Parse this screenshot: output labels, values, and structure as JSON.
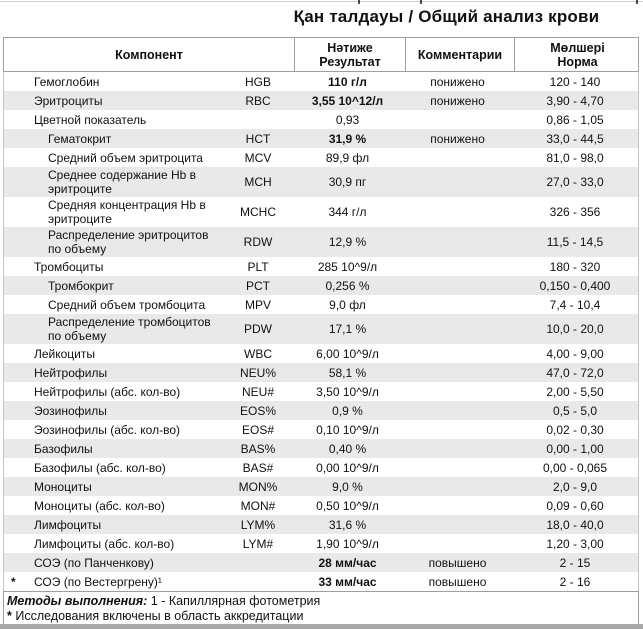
{
  "title": "Қан  талдауы / Общий анализ крови",
  "table": {
    "headers": {
      "component": "Компонент",
      "result": "Нәтиже\nРезультат",
      "comment": "Комментарии",
      "norm": "Мөлшері\nНорма"
    },
    "rows": [
      {
        "name": "Гемоглобин",
        "code": "HGB",
        "result": "110 г/л",
        "comment": "понижено",
        "norm": "120 - 140",
        "bold": true,
        "shaded": false,
        "indent": 1,
        "asterisk": false
      },
      {
        "name": "Эритроциты",
        "code": "RBC",
        "result": "3,55 10^12/л",
        "comment": "понижено",
        "norm": "3,90 - 4,70",
        "bold": true,
        "shaded": true,
        "indent": 1,
        "asterisk": false
      },
      {
        "name": "Цветной показатель",
        "code": "",
        "result": "0,93",
        "comment": "",
        "norm": "0,86 - 1,05",
        "bold": false,
        "shaded": false,
        "indent": 1,
        "asterisk": false
      },
      {
        "name": "Гематокрит",
        "code": "HCT",
        "result": "31,9 %",
        "comment": "понижено",
        "norm": "33,0 - 44,5",
        "bold": true,
        "shaded": true,
        "indent": 2,
        "asterisk": false
      },
      {
        "name": "Средний объем эритроцита",
        "code": "MCV",
        "result": "89,9 фл",
        "comment": "",
        "norm": "81,0 - 98,0",
        "bold": false,
        "shaded": false,
        "indent": 2,
        "asterisk": false
      },
      {
        "name": "Среднее содержание Hb в эритроците",
        "code": "MCH",
        "result": "30,9 пг",
        "comment": "",
        "norm": "27,0 - 33,0",
        "bold": false,
        "shaded": true,
        "indent": 2,
        "asterisk": false
      },
      {
        "name": "Средняя концентрация Hb в эритроците",
        "code": "MCHC",
        "result": "344 г/л",
        "comment": "",
        "norm": "326 - 356",
        "bold": false,
        "shaded": false,
        "indent": 2,
        "asterisk": false
      },
      {
        "name": "Распределение эритроцитов по объему",
        "code": "RDW",
        "result": "12,9 %",
        "comment": "",
        "norm": "11,5 - 14,5",
        "bold": false,
        "shaded": true,
        "indent": 2,
        "asterisk": false
      },
      {
        "name": "Тромбоциты",
        "code": "PLT",
        "result": "285 10^9/л",
        "comment": "",
        "norm": "180 - 320",
        "bold": false,
        "shaded": false,
        "indent": 1,
        "asterisk": false
      },
      {
        "name": "Тромбокрит",
        "code": "PCT",
        "result": "0,256 %",
        "comment": "",
        "norm": "0,150 - 0,400",
        "bold": false,
        "shaded": true,
        "indent": 2,
        "asterisk": false
      },
      {
        "name": "Средний объем тромбоцита",
        "code": "MPV",
        "result": "9,0 фл",
        "comment": "",
        "norm": "7,4 - 10,4",
        "bold": false,
        "shaded": false,
        "indent": 2,
        "asterisk": false
      },
      {
        "name": "Распределение тромбоцитов по объему",
        "code": "PDW",
        "result": "17,1 %",
        "comment": "",
        "norm": "10,0 - 20,0",
        "bold": false,
        "shaded": true,
        "indent": 2,
        "asterisk": false
      },
      {
        "name": "Лейкоциты",
        "code": "WBC",
        "result": "6,00 10^9/л",
        "comment": "",
        "norm": "4,00 - 9,00",
        "bold": false,
        "shaded": false,
        "indent": 1,
        "asterisk": false
      },
      {
        "name": "Нейтрофилы",
        "code": "NEU%",
        "result": "58,1 %",
        "comment": "",
        "norm": "47,0 - 72,0",
        "bold": false,
        "shaded": true,
        "indent": 1,
        "asterisk": false
      },
      {
        "name": "Нейтрофилы (абс. кол-во)",
        "code": "NEU#",
        "result": "3,50 10^9/л",
        "comment": "",
        "norm": "2,00 - 5,50",
        "bold": false,
        "shaded": false,
        "indent": 1,
        "asterisk": false
      },
      {
        "name": "Эозинофилы",
        "code": "EOS%",
        "result": "0,9 %",
        "comment": "",
        "norm": "0,5 - 5,0",
        "bold": false,
        "shaded": true,
        "indent": 1,
        "asterisk": false
      },
      {
        "name": "Эозинофилы (абс. кол-во)",
        "code": "EOS#",
        "result": "0,10 10^9/л",
        "comment": "",
        "norm": "0,02 - 0,30",
        "bold": false,
        "shaded": false,
        "indent": 1,
        "asterisk": false
      },
      {
        "name": "Базофилы",
        "code": "BAS%",
        "result": "0,40 %",
        "comment": "",
        "norm": "0,00 - 1,00",
        "bold": false,
        "shaded": true,
        "indent": 1,
        "asterisk": false
      },
      {
        "name": "Базофилы (абс. кол-во)",
        "code": "BAS#",
        "result": "0,00 10^9/л",
        "comment": "",
        "norm": "0,00 - 0,065",
        "bold": false,
        "shaded": false,
        "indent": 1,
        "asterisk": false
      },
      {
        "name": "Моноциты",
        "code": "MON%",
        "result": "9,0 %",
        "comment": "",
        "norm": "2,0 - 9,0",
        "bold": false,
        "shaded": true,
        "indent": 1,
        "asterisk": false
      },
      {
        "name": "Моноциты (абс. кол-во)",
        "code": "MON#",
        "result": "0,50 10^9/л",
        "comment": "",
        "norm": "0,09 - 0,60",
        "bold": false,
        "shaded": false,
        "indent": 1,
        "asterisk": false
      },
      {
        "name": "Лимфоциты",
        "code": "LYM%",
        "result": "31,6 %",
        "comment": "",
        "norm": "18,0 - 40,0",
        "bold": false,
        "shaded": true,
        "indent": 1,
        "asterisk": false
      },
      {
        "name": "Лимфоциты (абс. кол-во)",
        "code": "LYM#",
        "result": "1,90 10^9/л",
        "comment": "",
        "norm": "1,20 - 3,00",
        "bold": false,
        "shaded": false,
        "indent": 1,
        "asterisk": false
      },
      {
        "name": "СОЭ (по Панченкову)",
        "code": "",
        "result": "28 мм/час",
        "comment": "повышено",
        "norm": "2 - 15",
        "bold": true,
        "shaded": true,
        "indent": 1,
        "asterisk": false
      },
      {
        "name": "СОЭ (по Вестергрену)¹",
        "code": "",
        "result": "33 мм/час",
        "comment": "повышено",
        "norm": "2 - 16",
        "bold": true,
        "shaded": false,
        "indent": 1,
        "asterisk": true
      }
    ]
  },
  "footer": {
    "methods_label": "Методы выполнения:",
    "methods_text": " 1 - Капиллярная фотометрия",
    "accreditation_star": "*",
    "accreditation_text": " Исследования включены в область аккредитации"
  }
}
